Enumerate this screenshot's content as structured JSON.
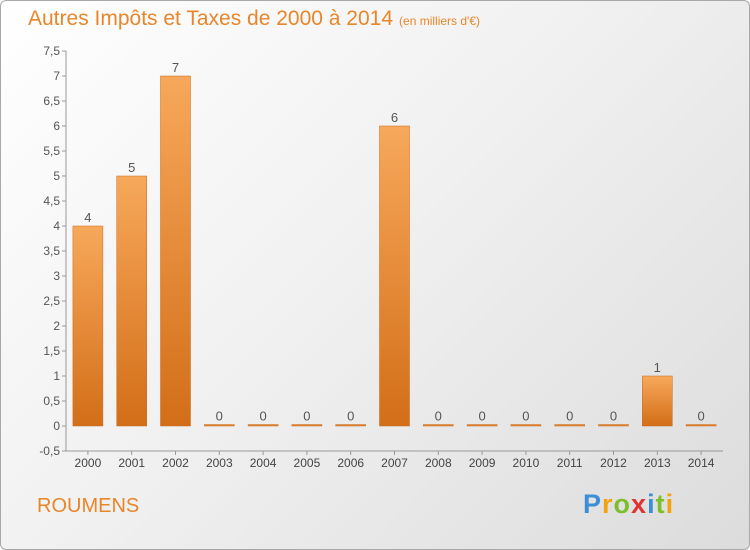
{
  "title": "Autres Impôts et Taxes de 2000 à 2014",
  "unit": "(en milliers d'€)",
  "commune": "ROUMENS",
  "logo": "Proxiti",
  "chart_data": {
    "type": "bar",
    "categories": [
      "2000",
      "2001",
      "2002",
      "2003",
      "2004",
      "2005",
      "2006",
      "2007",
      "2008",
      "2009",
      "2010",
      "2011",
      "2012",
      "2013",
      "2014"
    ],
    "values": [
      4,
      5,
      7,
      0,
      0,
      0,
      0,
      6,
      0,
      0,
      0,
      0,
      0,
      1,
      0
    ],
    "ylim": [
      -0.5,
      7.5
    ],
    "yticks": [
      "-0,5",
      "0",
      "0,5",
      "1",
      "1,5",
      "2",
      "2,5",
      "3",
      "3,5",
      "4",
      "4,5",
      "5",
      "5,5",
      "6",
      "6,5",
      "7",
      "7,5"
    ],
    "grid": false,
    "bar_color": "#e8862a"
  }
}
